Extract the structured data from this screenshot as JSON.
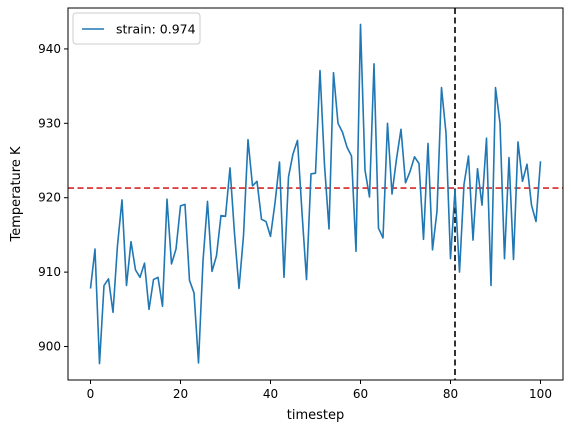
{
  "chart_data": {
    "type": "line",
    "title": "",
    "xlabel": "timestep",
    "ylabel": "Temperature K",
    "xlim": [
      -5,
      105
    ],
    "ylim": [
      895.5,
      945.5
    ],
    "xticks": [
      0,
      20,
      40,
      60,
      80,
      100
    ],
    "yticks": [
      900,
      910,
      920,
      930,
      940
    ],
    "grid": false,
    "legend_position": "top-left",
    "series": [
      {
        "name": "strain: 0.974",
        "color": "#1f77b4",
        "x": [
          0,
          1,
          2,
          3,
          4,
          5,
          6,
          7,
          8,
          9,
          10,
          11,
          12,
          13,
          14,
          15,
          16,
          17,
          18,
          19,
          20,
          21,
          22,
          23,
          24,
          25,
          26,
          27,
          28,
          29,
          30,
          31,
          32,
          33,
          34,
          35,
          36,
          37,
          38,
          39,
          40,
          41,
          42,
          43,
          44,
          45,
          46,
          47,
          48,
          49,
          50,
          51,
          52,
          53,
          54,
          55,
          56,
          57,
          58,
          59,
          60,
          61,
          62,
          63,
          64,
          65,
          66,
          67,
          68,
          69,
          70,
          71,
          72,
          73,
          74,
          75,
          76,
          77,
          78,
          79,
          80,
          81,
          82,
          83,
          84,
          85,
          86,
          87,
          88,
          89,
          90,
          91,
          92,
          93,
          94,
          95,
          96,
          97,
          98,
          99,
          100
        ],
        "y": [
          907.8,
          913.1,
          897.7,
          908.2,
          909.1,
          904.6,
          913.6,
          919.7,
          908.2,
          914.1,
          910.3,
          909.3,
          911.2,
          905.0,
          909.0,
          909.3,
          905.4,
          919.8,
          911.1,
          913.1,
          918.9,
          919.1,
          908.9,
          907.2,
          897.8,
          911.5,
          919.5,
          910.1,
          912.2,
          917.6,
          917.5,
          924.0,
          915.2,
          907.8,
          914.9,
          927.8,
          921.6,
          922.2,
          917.1,
          916.8,
          914.8,
          919.3,
          924.8,
          909.3,
          922.8,
          925.9,
          927.7,
          918.0,
          909.0,
          923.2,
          923.3,
          937.1,
          924.4,
          915.8,
          936.8,
          930.0,
          928.8,
          926.8,
          925.6,
          912.8,
          943.3,
          923.7,
          920.1,
          938.0,
          915.9,
          914.6,
          930.0,
          920.5,
          925.2,
          929.2,
          922.0,
          923.5,
          925.5,
          924.6,
          914.4,
          927.3,
          913.0,
          918.2,
          934.8,
          928.7,
          911.8,
          921.0,
          910.0,
          921.8,
          925.6,
          914.3,
          923.9,
          919.0,
          928.0,
          908.2,
          934.8,
          930.0,
          911.8,
          925.4,
          911.7,
          927.5,
          922.2,
          924.5,
          919.0,
          916.8,
          924.9
        ]
      }
    ],
    "reference_lines": [
      {
        "orientation": "horizontal",
        "value": 921.3,
        "color": "#d62728",
        "style": "dashed"
      },
      {
        "orientation": "vertical",
        "value": 81,
        "color": "#000000",
        "style": "dashed"
      }
    ]
  }
}
